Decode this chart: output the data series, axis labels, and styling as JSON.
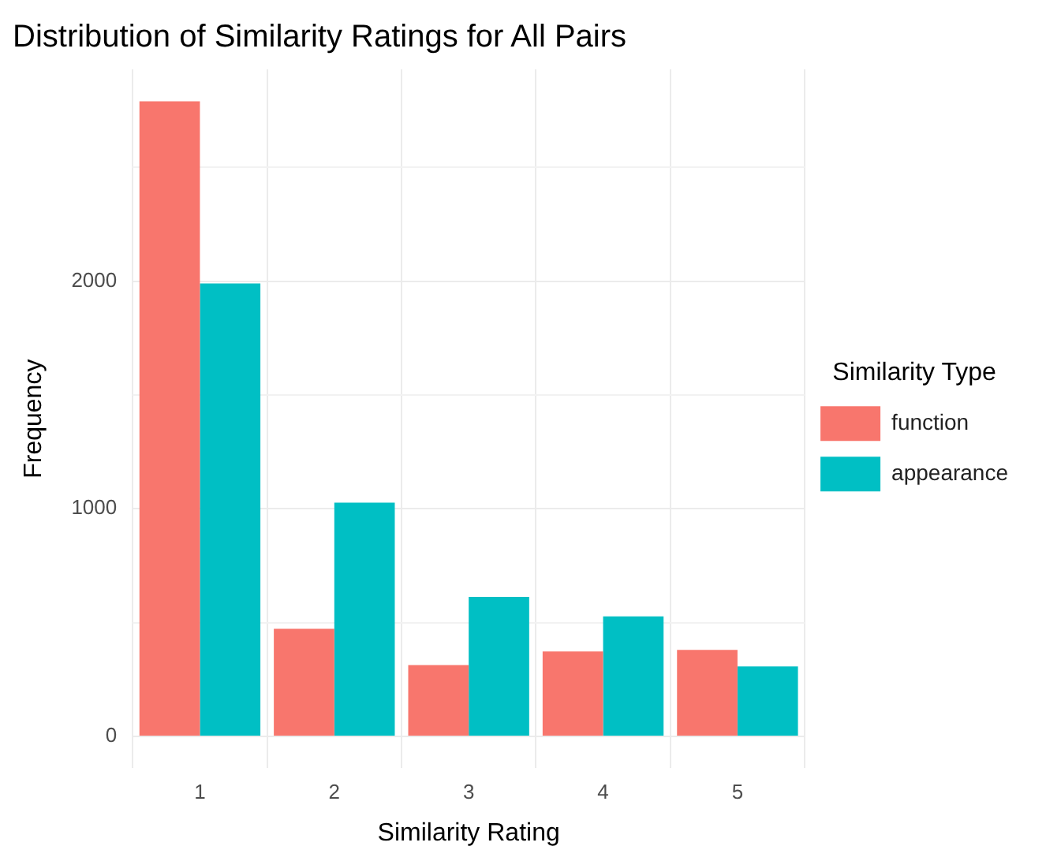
{
  "chart_data": {
    "type": "bar",
    "title": "Distribution of Similarity Ratings for All Pairs",
    "xlabel": "Similarity Rating",
    "ylabel": "Frequency",
    "legend_title": "Similarity Type",
    "categories": [
      "1",
      "2",
      "3",
      "4",
      "5"
    ],
    "series": [
      {
        "name": "function",
        "color": "#f8766d",
        "values": [
          2790,
          473,
          313,
          373,
          380
        ]
      },
      {
        "name": "appearance",
        "color": "#00bfc4",
        "values": [
          1990,
          1027,
          613,
          527,
          307
        ]
      }
    ],
    "ylim": [
      -140,
      2930
    ],
    "yticks": [
      0,
      {
        "value": 500,
        "label": null
      },
      1000,
      {
        "value": 1500,
        "label": null
      },
      2000,
      {
        "value": 2500,
        "label": null
      }
    ],
    "grid": true,
    "legend": "right"
  }
}
